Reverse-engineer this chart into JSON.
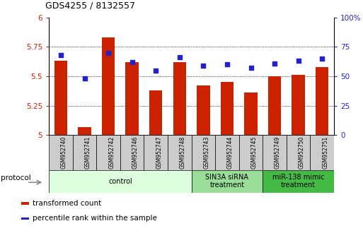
{
  "title": "GDS4255 / 8132557",
  "samples": [
    "GSM952740",
    "GSM952741",
    "GSM952742",
    "GSM952746",
    "GSM952747",
    "GSM952748",
    "GSM952743",
    "GSM952744",
    "GSM952745",
    "GSM952749",
    "GSM952750",
    "GSM952751"
  ],
  "bar_values": [
    5.63,
    5.07,
    5.83,
    5.62,
    5.38,
    5.62,
    5.42,
    5.45,
    5.36,
    5.5,
    5.51,
    5.58
  ],
  "blue_values": [
    68,
    48,
    70,
    62,
    55,
    66,
    59,
    60,
    57,
    61,
    63,
    65
  ],
  "bar_color": "#cc2200",
  "blue_color": "#2222cc",
  "ylim_left": [
    5.0,
    6.0
  ],
  "ylim_right": [
    0,
    100
  ],
  "yticks_left": [
    5.0,
    5.25,
    5.5,
    5.75,
    6.0
  ],
  "yticks_right": [
    0,
    25,
    50,
    75,
    100
  ],
  "ytick_labels_left": [
    "5",
    "5.25",
    "5.5",
    "5.75",
    "6"
  ],
  "ytick_labels_right": [
    "0",
    "25",
    "50",
    "75",
    "100%"
  ],
  "groups": [
    {
      "label": "control",
      "start": 0,
      "end": 6,
      "color": "#ddffdd"
    },
    {
      "label": "SIN3A siRNA\ntreatment",
      "start": 6,
      "end": 9,
      "color": "#99dd99"
    },
    {
      "label": "miR-138 mimic\ntreatment",
      "start": 9,
      "end": 12,
      "color": "#44bb44"
    }
  ],
  "protocol_label": "protocol",
  "legend_items": [
    {
      "label": "transformed count",
      "color": "#cc2200"
    },
    {
      "label": "percentile rank within the sample",
      "color": "#2222cc"
    }
  ],
  "tick_label_color_left": "#cc2200",
  "tick_label_color_right": "#2222cc",
  "bar_bottom": 5.0,
  "xlabel_bg": "#cccccc"
}
